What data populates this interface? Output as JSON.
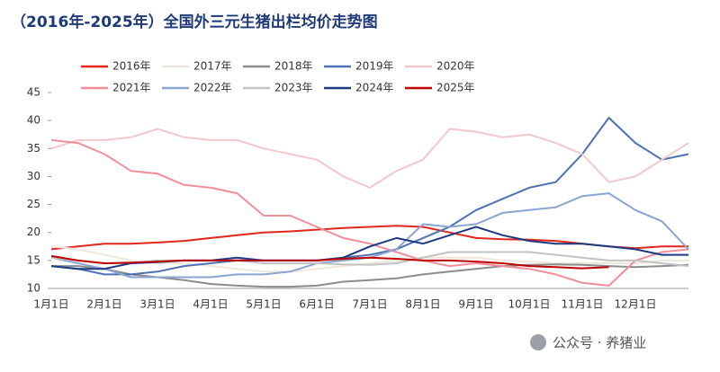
{
  "chart_data": {
    "type": "line",
    "title": "（2016年-2025年）全国外三元生猪出栏均价走势图",
    "footer": "公众号 · 养猪业",
    "categories": [
      "1月1日",
      null,
      "2月1日",
      null,
      "3月1日",
      null,
      "4月1日",
      null,
      "5月1日",
      null,
      "6月1日",
      null,
      "7月1日",
      null,
      "8月1日",
      null,
      "9月1日",
      null,
      "10月1日",
      null,
      "11月1日",
      null,
      "12月1日",
      null,
      null
    ],
    "ylim": [
      10,
      45
    ],
    "yticks": [
      10,
      15,
      20,
      25,
      30,
      35,
      40,
      45
    ],
    "legend": "top",
    "series": [
      {
        "name": "2016年",
        "color": "#e3251c",
        "values": [
          17,
          17.5,
          18,
          18,
          18.2,
          18.5,
          19,
          19.5,
          20,
          20.2,
          20.5,
          20.8,
          21,
          21.2,
          21,
          20,
          19,
          18.8,
          18.7,
          18.5,
          18,
          17.5,
          17.2,
          17.5,
          17.5
        ]
      },
      {
        "name": "2017年",
        "color": "#efe6dc",
        "values": [
          17.5,
          17,
          16,
          15,
          14.5,
          14.5,
          14,
          13.5,
          13,
          13,
          13.5,
          14,
          14.5,
          15,
          15.5,
          15.5,
          15.5,
          15,
          14.8,
          14.5,
          14.5,
          14.5,
          14.5,
          15,
          15
        ]
      },
      {
        "name": "2018年",
        "color": "#8c8c8c",
        "values": [
          14,
          14,
          13.5,
          12.5,
          12,
          11.5,
          10.8,
          10.5,
          10.3,
          10.3,
          10.5,
          11.2,
          11.5,
          11.8,
          12.5,
          13,
          13.5,
          14,
          14.2,
          14.3,
          14.2,
          14,
          13.8,
          14,
          14.2
        ]
      },
      {
        "name": "2019年",
        "color": "#4d72b3",
        "values": [
          14,
          13.5,
          12.5,
          12.5,
          13,
          14,
          14.5,
          15,
          15,
          15,
          15,
          15.5,
          16,
          17,
          19,
          21,
          24,
          26,
          28,
          29,
          34,
          40.5,
          36,
          33,
          34
        ]
      },
      {
        "name": "2020年",
        "color": "#f3c8cc",
        "values": [
          35,
          36.5,
          36.5,
          37,
          38.5,
          37,
          36.5,
          36.5,
          35,
          34,
          33,
          30,
          28,
          31,
          33,
          38.5,
          38,
          37,
          37.5,
          36,
          34,
          29,
          30,
          33,
          36
        ]
      },
      {
        "name": "2021年",
        "color": "#f28e9a",
        "values": [
          36.5,
          36,
          34,
          31,
          30.5,
          28.5,
          28,
          27,
          23,
          23,
          21,
          19,
          18,
          16.5,
          15,
          14,
          14.5,
          14,
          13.5,
          12.5,
          11,
          10.5,
          15,
          16.5,
          17
        ]
      },
      {
        "name": "2022年",
        "color": "#8aa5d2",
        "values": [
          15.5,
          14.5,
          13.5,
          12,
          12,
          12,
          12,
          12.5,
          12.5,
          13,
          14.5,
          15,
          15.5,
          17,
          21.5,
          21,
          21.5,
          23.5,
          24,
          24.5,
          26.5,
          27,
          24,
          22,
          17
        ]
      },
      {
        "name": "2023年",
        "color": "#c2c2c2",
        "values": [
          15.5,
          15,
          14.5,
          14.5,
          15,
          15,
          15,
          15,
          14.5,
          14.5,
          14.5,
          14.3,
          14.2,
          14.5,
          15.5,
          16.5,
          16.5,
          16.5,
          16.5,
          16,
          15.5,
          15,
          15,
          14.5,
          14
        ]
      },
      {
        "name": "2024年",
        "color": "#1b3a82",
        "values": [
          14,
          13.5,
          13.5,
          14.5,
          14.7,
          15,
          15,
          15.5,
          15,
          15,
          15,
          15.5,
          17.5,
          19,
          18,
          19.5,
          21,
          19.5,
          18.5,
          18,
          18,
          17.5,
          17,
          16,
          16
        ]
      },
      {
        "name": "2025年",
        "color": "#c00000",
        "values": [
          15.8,
          15,
          14.5,
          14.6,
          14.8,
          15,
          15,
          15,
          15,
          15,
          15,
          15.3,
          15.5,
          15.3,
          15,
          15,
          14.8,
          14.5,
          14,
          13.8,
          13.6,
          13.8,
          null,
          null,
          null
        ]
      }
    ]
  }
}
